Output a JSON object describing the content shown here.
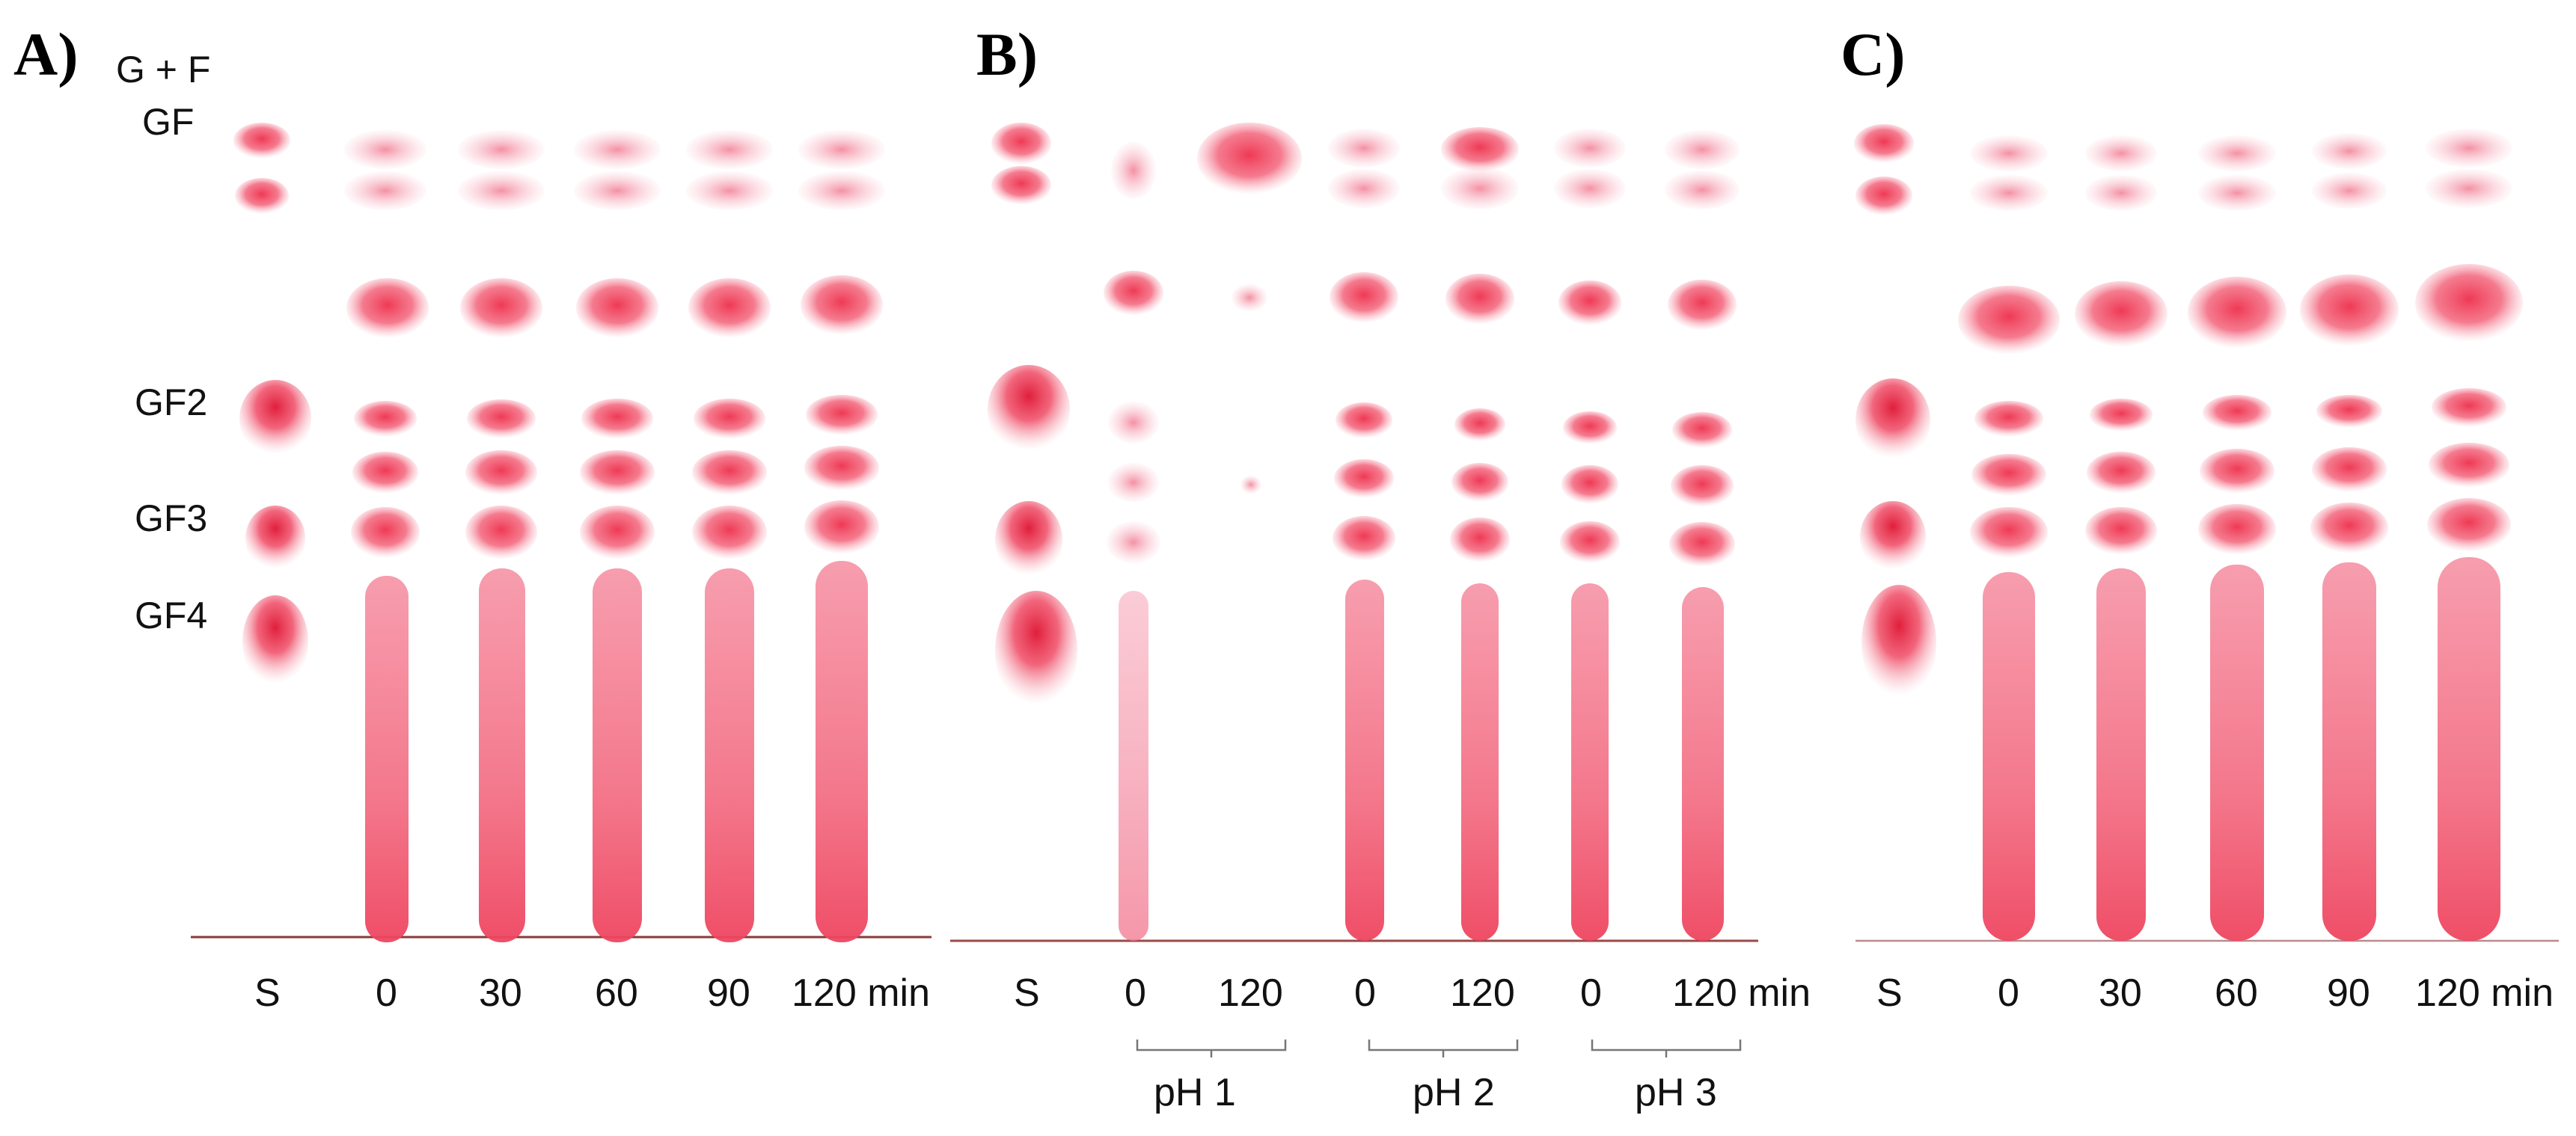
{
  "figure": {
    "panels": [
      {
        "letter": "A)",
        "compound_labels": [
          "G + F",
          "GF",
          "GF2",
          "GF3",
          "GF4"
        ],
        "lanes": [
          "S",
          "0",
          "30",
          "60",
          "90",
          "120 min"
        ]
      },
      {
        "letter": "B)",
        "lanes": [
          "S",
          "0",
          "120",
          "0",
          "120",
          "0",
          "120 min"
        ],
        "groups": [
          "pH 1",
          "pH 2",
          "pH 3"
        ]
      },
      {
        "letter": "C)",
        "lanes": [
          "S",
          "0",
          "30",
          "60",
          "90",
          "120 min"
        ]
      }
    ],
    "colors": {
      "spot": "#f0405a",
      "spot_light": "#f7a0b4",
      "baseline": "#7a2a2a"
    }
  }
}
